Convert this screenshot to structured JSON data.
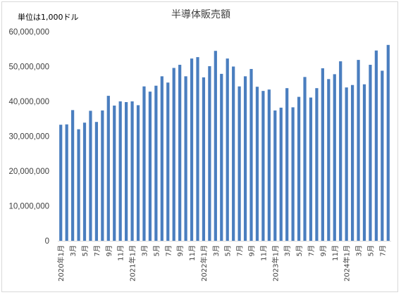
{
  "chart_data": {
    "type": "bar",
    "title": "半導体販売額",
    "unit_label": "単位は1,000ドル",
    "ylim": [
      0,
      60000000
    ],
    "y_ticks": [
      0,
      10000000,
      20000000,
      30000000,
      40000000,
      50000000,
      60000000
    ],
    "y_tick_labels": [
      "0",
      "10,000,000",
      "20,000,000",
      "30,000,000",
      "40,000,000",
      "50,000,000",
      "60,000,000"
    ],
    "grid": false,
    "legend": "none",
    "bar_color": "#4a7ebf",
    "categories": [
      "2020年1月",
      "2月",
      "3月",
      "4月",
      "5月",
      "6月",
      "7月",
      "8月",
      "9月",
      "10月",
      "11月",
      "12月",
      "2021年1月",
      "2月",
      "3月",
      "4月",
      "5月",
      "6月",
      "7月",
      "8月",
      "9月",
      "10月",
      "11月",
      "12月",
      "2022年1月",
      "2月",
      "3月",
      "4月",
      "5月",
      "6月",
      "7月",
      "8月",
      "9月",
      "10月",
      "11月",
      "12月",
      "2023年1月",
      "2月",
      "3月",
      "4月",
      "5月",
      "6月",
      "7月",
      "8月",
      "9月",
      "10月",
      "11月",
      "12月",
      "2024年1月",
      "2月",
      "3月",
      "4月",
      "5月",
      "6月",
      "7月",
      "8月"
    ],
    "x_tick_labels": [
      "2020年1月",
      "3月",
      "5月",
      "7月",
      "9月",
      "11月",
      "2021年1月",
      "3月",
      "5月",
      "7月",
      "9月",
      "11月",
      "2022年1月",
      "3月",
      "5月",
      "7月",
      "9月",
      "11月",
      "2023年1月",
      "3月",
      "5月",
      "7月",
      "9月",
      "11月",
      "2024年1月",
      "3月",
      "5月",
      "7月"
    ],
    "values": [
      33300000,
      33400000,
      37500000,
      32000000,
      33900000,
      37300000,
      34100000,
      37400000,
      41600000,
      38800000,
      40000000,
      39800000,
      40000000,
      38900000,
      44300000,
      42800000,
      44500000,
      47200000,
      45400000,
      49600000,
      50500000,
      47200000,
      52300000,
      52700000,
      46900000,
      50100000,
      54500000,
      47900000,
      52300000,
      50000000,
      44300000,
      47200000,
      49300000,
      44200000,
      43000000,
      43400000,
      37400000,
      38200000,
      43800000,
      38300000,
      41300000,
      47000000,
      41100000,
      43800000,
      49500000,
      46400000,
      47800000,
      51500000,
      44000000,
      44700000,
      51900000,
      44900000,
      50500000,
      54600000,
      48800000,
      56200000
    ]
  }
}
